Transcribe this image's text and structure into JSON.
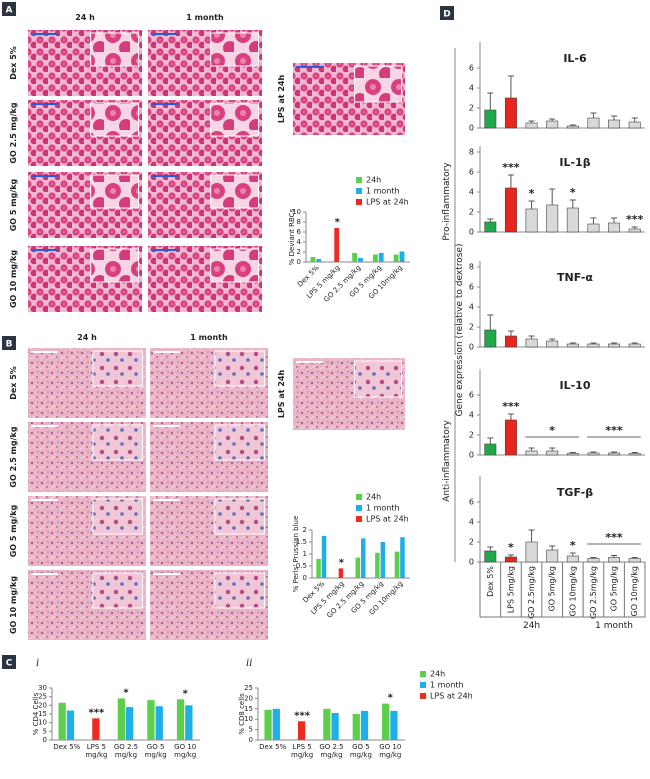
{
  "figure": {
    "panel_letters": [
      "A",
      "B",
      "C",
      "D"
    ],
    "panel_a": {
      "columns": [
        "24 h",
        "1 month"
      ],
      "rows": [
        "Dex 5%",
        "GO 2.5 mg/kg",
        "GO 5 mg/kg",
        "GO 10 mg/kg"
      ],
      "inset": "LPS at 24h"
    },
    "panel_b": {
      "columns": [
        "24 h",
        "1 month"
      ],
      "rows": [
        "Dex 5%",
        "GO 2.5 mg/kg",
        "GO 5 mg/kg",
        "GO 10 mg/kg"
      ],
      "inset": "LPS at 24h"
    }
  },
  "chart_data": [
    {
      "type": "grouped-bar",
      "legend": [
        {
          "name": "24h",
          "color": "#5ccf4a"
        },
        {
          "name": "1 month",
          "color": "#1eaee8"
        },
        {
          "name": "LPS at 24h",
          "color": "#ee2a22"
        }
      ],
      "subplots": [
        {
          "ylabel": "% Deviant RBCs",
          "categories": [
            "Dex 5%",
            "LPS 5 mg/kg",
            "GO 2.5 mg/kg",
            "GO 5 mg/kg",
            "GO 10mg/kg"
          ],
          "ylim": [
            0,
            10
          ],
          "yticks": [
            0,
            2,
            4,
            6,
            8,
            10
          ],
          "values": [
            [
              1,
              null,
              1.8,
              1.5,
              1.5
            ],
            [
              0.6,
              null,
              0.8,
              1.8,
              2.1
            ],
            [
              null,
              6.8,
              null,
              null,
              null
            ]
          ],
          "significance": [
            null,
            "*",
            null,
            null,
            null
          ]
        }
      ]
    },
    {
      "type": "grouped-bar",
      "legend": [
        {
          "name": "24h",
          "color": "#5ccf4a"
        },
        {
          "name": "1 month",
          "color": "#1eaee8"
        },
        {
          "name": "LPS at 24h",
          "color": "#ee2a22"
        }
      ],
      "subplots": [
        {
          "ylabel": "% Perls' Prussian blue",
          "categories": [
            "Dex 5%",
            "LPS 5 mg/kg",
            "GO 2.5 mg/kg",
            "GO 5 mg/kg",
            "GO 10mg/kg"
          ],
          "ylim": [
            0,
            2
          ],
          "yticks": [
            0,
            0.5,
            1,
            1.5,
            2
          ],
          "values": [
            [
              0.8,
              null,
              0.85,
              1.05,
              1.1
            ],
            [
              1.75,
              null,
              1.65,
              1.5,
              1.7
            ],
            [
              null,
              0.4,
              null,
              null,
              null
            ]
          ],
          "significance": [
            null,
            "*",
            null,
            null,
            null
          ]
        }
      ]
    },
    {
      "type": "grouped-bar",
      "legend": [
        {
          "name": "24h",
          "color": "#5ccf4a"
        },
        {
          "name": "1 month",
          "color": "#1eaee8"
        },
        {
          "name": "LPS at 24h",
          "color": "#ee2a22"
        }
      ],
      "subplots": [
        {
          "label": "i",
          "ylabel": "% CD4 Cells",
          "categories": [
            "Dex 5%",
            "LPS 5 mg/kg",
            "GO 2.5 mg/kg",
            "GO 5 mg/kg",
            "GO 10 mg/kg"
          ],
          "ylim": [
            0,
            30
          ],
          "yticks": [
            0,
            5,
            10,
            15,
            20,
            25,
            30
          ],
          "values": [
            [
              21.5,
              null,
              24,
              23,
              23.5
            ],
            [
              17,
              null,
              19,
              19.5,
              20
            ],
            [
              null,
              12.5,
              null,
              null,
              null
            ]
          ],
          "significance": [
            null,
            "***",
            "*",
            null,
            "*"
          ]
        },
        {
          "label": "ii",
          "ylabel": "% CD8 cells",
          "categories": [
            "Dex 5%",
            "LPS 5 mg/kg",
            "GO 2.5 mg/kg",
            "GO 5 mg/kg",
            "GO 10 mg/kg"
          ],
          "ylim": [
            0,
            25
          ],
          "yticks": [
            0,
            5,
            10,
            15,
            20,
            25
          ],
          "values": [
            [
              14.5,
              null,
              15,
              12.5,
              17.5
            ],
            [
              15,
              null,
              13,
              14,
              14
            ],
            [
              null,
              9,
              null,
              null,
              null
            ]
          ],
          "significance": [
            null,
            "***",
            null,
            null,
            "*"
          ]
        }
      ]
    },
    {
      "type": "panel-bar",
      "ylabel": "Gene expression (relative to dextrose)",
      "categories": [
        "Dex 5%",
        "LPS 5mg/kg",
        "GO 2.5mg/kg",
        "GO 5mg/kg",
        "GO 10mg/kg",
        "GO 2.5mg/kg",
        "GO 5mg/kg",
        "GO 10mg/kg"
      ],
      "colors": [
        "#1fa84a",
        "#e8261e",
        "#d9d9d9",
        "#d9d9d9",
        "#d9d9d9",
        "#d9d9d9",
        "#d9d9d9",
        "#d9d9d9"
      ],
      "groups": [
        {
          "label": "24h",
          "size": 5
        },
        {
          "label": "1 month",
          "size": 3
        }
      ],
      "sections": [
        "Pro-inflammatory",
        "Anti-inflammatory"
      ],
      "panels": [
        {
          "title": "IL-6",
          "ylim": [
            0,
            8
          ],
          "yticks": [
            0,
            2,
            4,
            6
          ],
          "values": [
            1.8,
            3.0,
            0.5,
            0.7,
            0.2,
            1.0,
            0.8,
            0.6
          ],
          "errors": [
            1.7,
            2.2,
            0.2,
            0.2,
            0.1,
            0.5,
            0.4,
            0.4
          ]
        },
        {
          "title": "IL-1β",
          "ylim": [
            0,
            8
          ],
          "yticks": [
            0,
            2,
            4,
            6,
            8
          ],
          "values": [
            1.0,
            4.4,
            2.3,
            2.7,
            2.4,
            0.8,
            0.9,
            0.3
          ],
          "errors": [
            0.3,
            1.3,
            0.8,
            1.6,
            0.8,
            0.6,
            0.5,
            0.2
          ],
          "significance": [
            null,
            "***",
            "*",
            null,
            "*",
            null,
            null,
            "***"
          ]
        },
        {
          "title": "TNF-α",
          "ylim": [
            0,
            8
          ],
          "yticks": [
            0,
            2,
            4,
            6,
            8
          ],
          "values": [
            1.7,
            1.1,
            0.8,
            0.6,
            0.3,
            0.3,
            0.3,
            0.3
          ],
          "errors": [
            1.5,
            0.5,
            0.3,
            0.2,
            0.1,
            0.1,
            0.1,
            0.1
          ]
        },
        {
          "title": "IL-10",
          "ylim": [
            0,
            8
          ],
          "yticks": [
            0,
            2,
            4,
            6
          ],
          "values": [
            1.1,
            3.5,
            0.4,
            0.4,
            0.15,
            0.2,
            0.2,
            0.15
          ],
          "errors": [
            0.6,
            0.6,
            0.3,
            0.3,
            0.1,
            0.1,
            0.1,
            0.1
          ],
          "significance": [
            null,
            "***",
            null,
            null,
            null,
            null,
            null,
            null
          ],
          "brackets": [
            {
              "text": "*",
              "first": 2,
              "last": 4
            },
            {
              "text": "***",
              "first": 5,
              "last": 7
            }
          ]
        },
        {
          "title": "TGF-β",
          "ylim": [
            0,
            8
          ],
          "yticks": [
            0,
            2,
            4,
            6
          ],
          "values": [
            1.1,
            0.5,
            2.0,
            1.2,
            0.6,
            0.35,
            0.45,
            0.35
          ],
          "errors": [
            0.4,
            0.2,
            1.2,
            0.4,
            0.3,
            0.1,
            0.2,
            0.1
          ],
          "significance": [
            null,
            "*",
            null,
            null,
            "*",
            null,
            null,
            null
          ],
          "brackets": [
            {
              "text": "***",
              "first": 5,
              "last": 7
            }
          ]
        }
      ]
    }
  ]
}
